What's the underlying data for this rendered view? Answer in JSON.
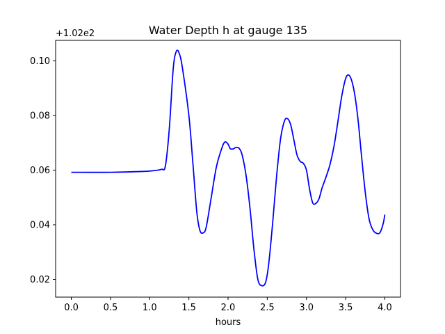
{
  "chart_data": {
    "type": "line",
    "title": "Water Depth h at gauge 135",
    "xlabel": "hours",
    "ylabel": "",
    "y_offset_label": "+1.02e2",
    "xlim": [
      -0.2,
      4.2
    ],
    "ylim": [
      0.0135,
      0.1075
    ],
    "xticks": [
      0.0,
      0.5,
      1.0,
      1.5,
      2.0,
      2.5,
      3.0,
      3.5,
      4.0
    ],
    "xtick_labels": [
      "0.0",
      "0.5",
      "1.0",
      "1.5",
      "2.0",
      "2.5",
      "3.0",
      "3.5",
      "4.0"
    ],
    "yticks": [
      0.02,
      0.04,
      0.06,
      0.08,
      0.1
    ],
    "ytick_labels": [
      "0.02",
      "0.04",
      "0.06",
      "0.08",
      "0.10"
    ],
    "grid": false,
    "series": [
      {
        "color": "#0000ff",
        "x": [
          0.0,
          0.5,
          0.9,
          1.05,
          1.15,
          1.2,
          1.25,
          1.3,
          1.34,
          1.38,
          1.42,
          1.5,
          1.55,
          1.6,
          1.64,
          1.68,
          1.72,
          1.78,
          1.85,
          1.92,
          1.96,
          2.0,
          2.03,
          2.07,
          2.1,
          2.14,
          2.18,
          2.23,
          2.28,
          2.33,
          2.38,
          2.43,
          2.48,
          2.52,
          2.57,
          2.62,
          2.67,
          2.72,
          2.76,
          2.8,
          2.84,
          2.88,
          2.92,
          2.96,
          3.0,
          3.04,
          3.08,
          3.12,
          3.16,
          3.2,
          3.25,
          3.3,
          3.35,
          3.4,
          3.45,
          3.5,
          3.54,
          3.58,
          3.62,
          3.66,
          3.7,
          3.75,
          3.8,
          3.85,
          3.9,
          3.94,
          3.98,
          4.0
        ],
        "y": [
          0.0592,
          0.0592,
          0.0595,
          0.0598,
          0.0603,
          0.0615,
          0.075,
          0.097,
          0.1035,
          0.1025,
          0.097,
          0.08,
          0.063,
          0.045,
          0.038,
          0.037,
          0.039,
          0.049,
          0.061,
          0.068,
          0.0703,
          0.0695,
          0.0678,
          0.0678,
          0.0683,
          0.068,
          0.0655,
          0.058,
          0.046,
          0.031,
          0.02,
          0.0177,
          0.019,
          0.026,
          0.041,
          0.058,
          0.0715,
          0.078,
          0.0788,
          0.0765,
          0.071,
          0.0655,
          0.0632,
          0.0625,
          0.06,
          0.053,
          0.048,
          0.0478,
          0.0495,
          0.0535,
          0.0575,
          0.062,
          0.0685,
          0.0775,
          0.087,
          0.0935,
          0.0948,
          0.0925,
          0.087,
          0.078,
          0.066,
          0.052,
          0.042,
          0.038,
          0.0368,
          0.0372,
          0.0405,
          0.0437
        ]
      }
    ]
  }
}
